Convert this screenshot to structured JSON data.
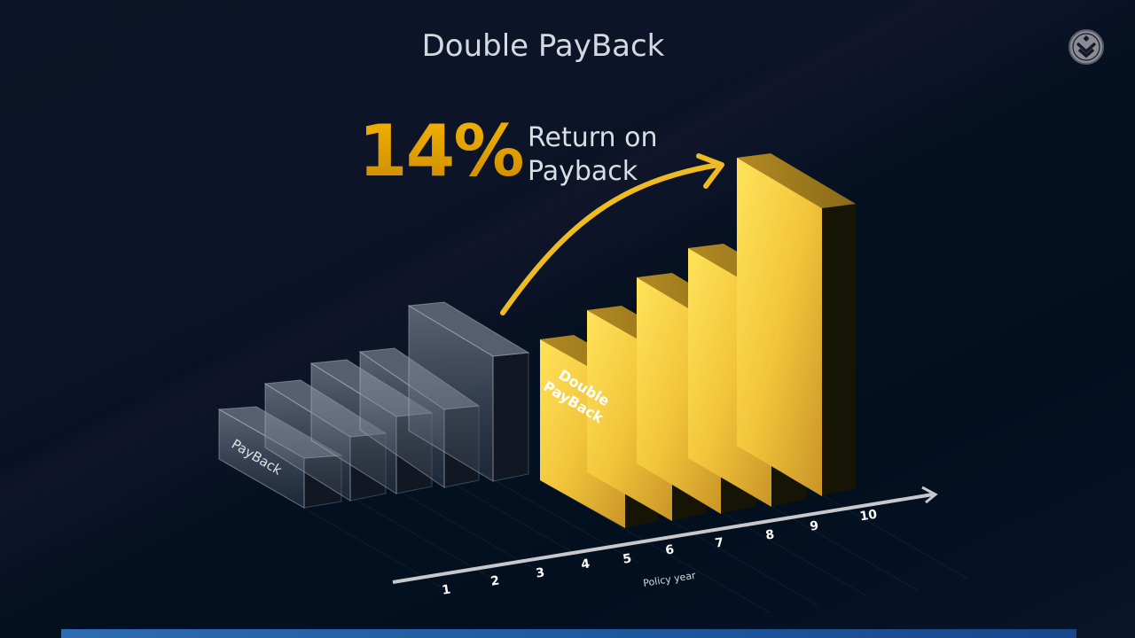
{
  "slide": {
    "title": "Double PayBack",
    "headline_value": "14%",
    "headline_text_line1": "Return on",
    "headline_text_line2": "Payback",
    "logo_icon": "chevron-shield-logo-icon"
  },
  "graphic": {
    "glass_bar_label": "PayBack",
    "gold_bar_label_line1": "Double",
    "gold_bar_label_line2": "PayBack",
    "axis_label": "Policy year",
    "ticks": [
      "1",
      "2",
      "3",
      "4",
      "5",
      "6",
      "7",
      "8",
      "9",
      "10"
    ],
    "colors": {
      "gold": "#f5c430",
      "gold_side": "#161405",
      "glass": "#8b93a3",
      "axis": "#c8c8cc",
      "accent_bar": "#2c6cb0"
    }
  }
}
